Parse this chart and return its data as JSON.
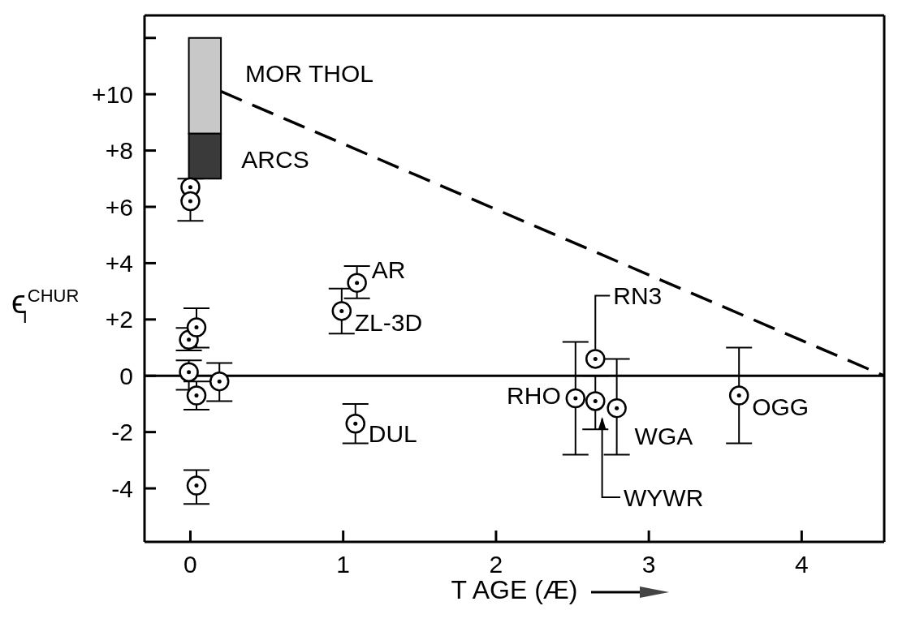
{
  "chart_data": {
    "type": "scatter",
    "xlabel": "T AGE   (Æ)",
    "ylabel": "ϵ$_{I}$$^{CHUR}$",
    "xlim": [
      -0.3,
      4.54
    ],
    "xticks": [
      0,
      1,
      2,
      3,
      4
    ],
    "ylim": [
      -5.9,
      12.8
    ],
    "yticks": [
      {
        "value": -4,
        "label": "-4"
      },
      {
        "value": -2,
        "label": "-2"
      },
      0,
      {
        "value": 2,
        "label": "+2"
      },
      {
        "value": 4,
        "label": "+4"
      },
      {
        "value": 6,
        "label": "+6"
      },
      {
        "value": 8,
        "label": "+8"
      },
      {
        "value": 10,
        "label": "+10"
      },
      {
        "value": 12,
        "label": null
      }
    ],
    "grid": false,
    "legend": false,
    "ref_lines": [
      {
        "axis": "y",
        "value": 0,
        "label": null,
        "color": "#000000",
        "line_style": "solid"
      }
    ],
    "series": [
      {
        "type": "bar",
        "color": "#c8c8c8",
        "x": [
          0.095
        ],
        "base": [
          8.6
        ],
        "values": [
          3.4
        ]
      },
      {
        "type": "bar",
        "color": "#3a3a3a",
        "x": [
          0.095
        ],
        "base": [
          7.0
        ],
        "values": [
          1.6
        ]
      },
      {
        "type": "line",
        "color": "#000000",
        "line_style": "dashed",
        "marker": "none",
        "x": [
          0.2,
          4.54
        ],
        "values": [
          10.1,
          0
        ]
      },
      {
        "color": "#000000",
        "marker": "circle",
        "x": [
          0.0,
          0.0,
          -0.01,
          0.04,
          -0.01,
          0.04,
          0.19,
          0.04,
          0.99,
          1.09,
          1.08,
          2.52,
          2.65,
          2.65,
          2.79,
          3.59
        ],
        "values": [
          6.7,
          6.2,
          1.28,
          1.72,
          0.13,
          -0.7,
          -0.2,
          -3.9,
          2.3,
          3.3,
          -1.7,
          -0.8,
          0.6,
          -0.9,
          -1.15,
          -0.7
        ],
        "errors": [
          null,
          [
            5.5,
            7.0
          ],
          [
            0.9,
            1.7
          ],
          [
            1.0,
            2.4
          ],
          [
            -0.5,
            0.55
          ],
          [
            -1.2,
            -0.2
          ],
          [
            -0.9,
            0.45
          ],
          [
            -4.55,
            -3.35
          ],
          [
            1.5,
            3.1
          ],
          [
            2.75,
            3.9
          ],
          [
            -2.4,
            -1.0
          ],
          [
            -2.8,
            1.2
          ],
          null,
          [
            -1.9,
            0
          ],
          [
            -2.8,
            0.6
          ],
          [
            -2.4,
            1.0
          ]
        ]
      }
    ],
    "annotations": [
      {
        "text": "MOR THOL",
        "x": 0.2,
        "y": 10.1
      },
      {
        "text": "ARCS",
        "x": 0.095,
        "y": 8.6
      },
      {
        "text": "AR",
        "x": 1.09,
        "y": 3.3
      },
      {
        "text": "ZL-3D",
        "x": 0.99,
        "y": 2.3
      },
      {
        "text": "DUL",
        "x": 1.08,
        "y": -1.7
      },
      {
        "text": "RHO",
        "x": 2.52,
        "y": -0.8
      },
      {
        "text": "RN3",
        "x": 2.65,
        "y": 0.6
      },
      {
        "text": "WGA",
        "x": 2.79,
        "y": -1.15
      },
      "WYWR",
      {
        "text": "OGG",
        "x": 3.59,
        "y": -0.7
      }
    ]
  }
}
